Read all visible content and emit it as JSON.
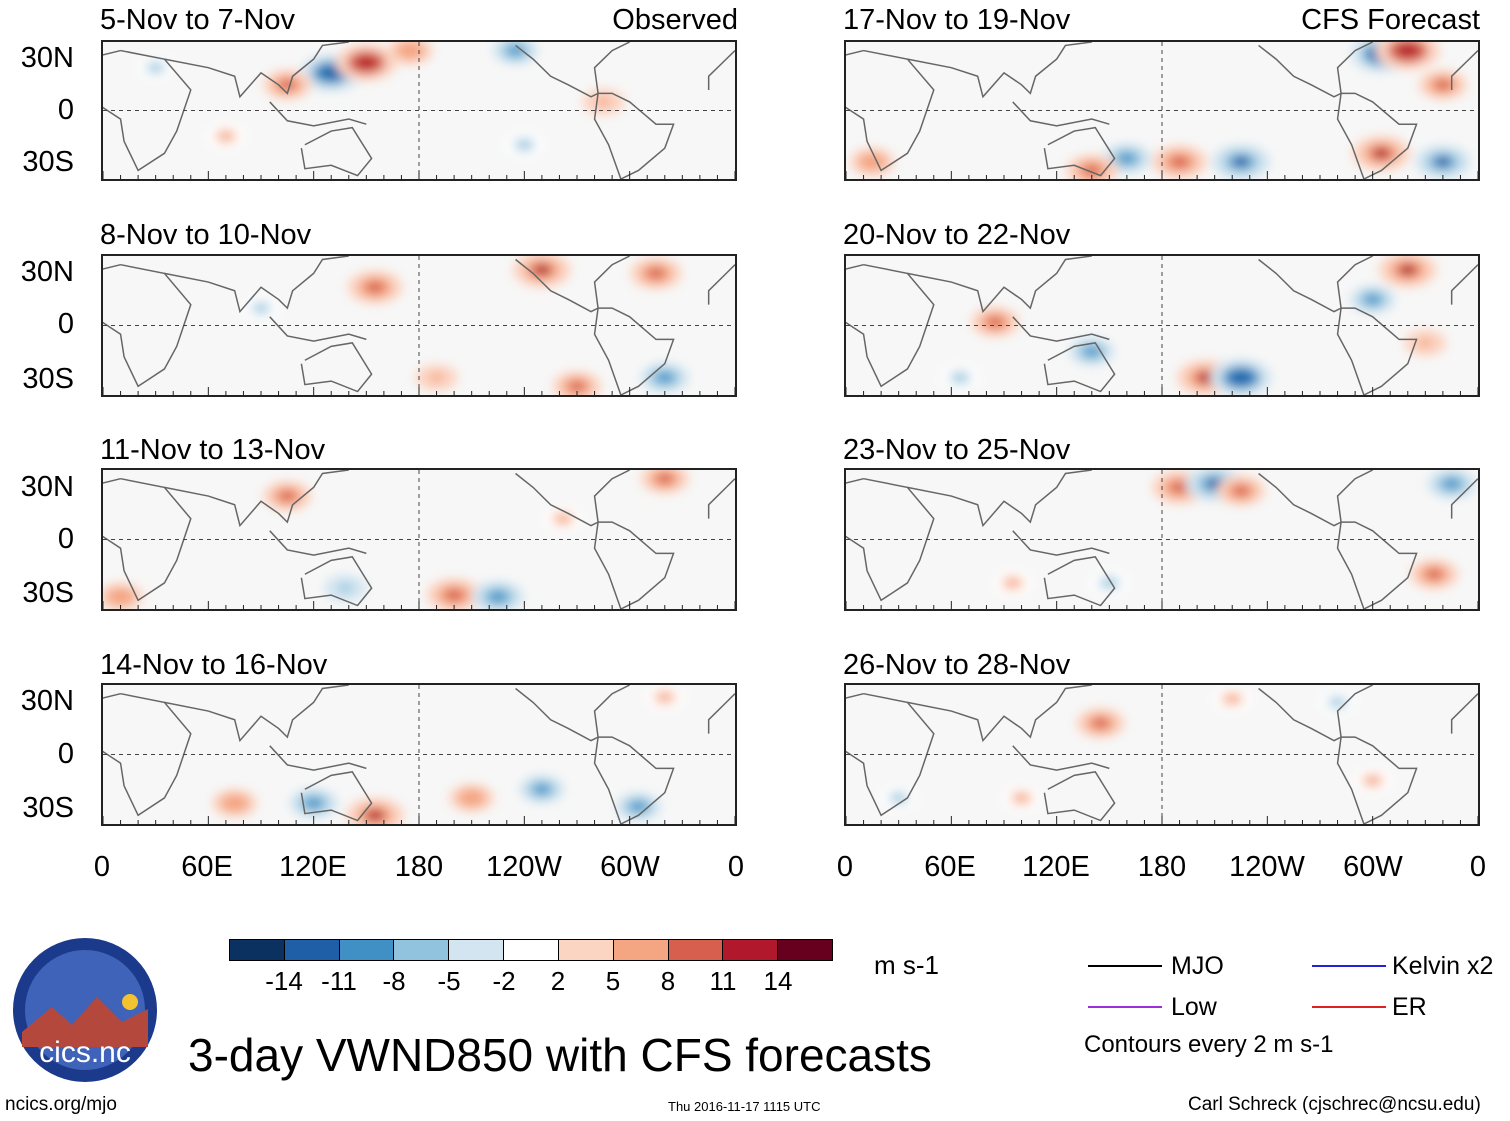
{
  "title": "3-day VWND850 with CFS forecasts",
  "columns": {
    "observed_label": "Observed",
    "forecast_label": "CFS Forecast"
  },
  "panels": [
    {
      "title": "5-Nov to 7-Nov"
    },
    {
      "title": "8-Nov to 10-Nov"
    },
    {
      "title": "11-Nov to 13-Nov"
    },
    {
      "title": "14-Nov to 16-Nov"
    },
    {
      "title": "17-Nov to 19-Nov"
    },
    {
      "title": "20-Nov to 22-Nov"
    },
    {
      "title": "23-Nov to 25-Nov"
    },
    {
      "title": "26-Nov to 28-Nov"
    }
  ],
  "chart_data": {
    "type": "heatmap",
    "variable": "VWND850",
    "units": "m s-1",
    "y_ticks": [
      "30N",
      "0",
      "30S"
    ],
    "x_ticks": [
      "0",
      "60E",
      "120E",
      "180",
      "120W",
      "60W",
      "0"
    ],
    "ylim": [
      -40,
      40
    ],
    "xlim": [
      0,
      360
    ],
    "colorbar_ticks": [
      "-14",
      "-11",
      "-8",
      "-5",
      "-2",
      "2",
      "5",
      "8",
      "11",
      "14"
    ],
    "colorbar_colors": [
      "#0a3160",
      "#1f5fa8",
      "#4090c5",
      "#91c3de",
      "#d2e5f0",
      "#ffffff",
      "#fcd4c2",
      "#f4a582",
      "#d6604d",
      "#b2182b",
      "#67001f"
    ],
    "blobs": [
      [
        {
          "lon": 130,
          "lat": 22,
          "v": -13
        },
        {
          "lon": 150,
          "lat": 28,
          "v": 13
        },
        {
          "lon": 105,
          "lat": 15,
          "v": 9
        },
        {
          "lon": 175,
          "lat": 35,
          "v": 8
        },
        {
          "lon": 235,
          "lat": 35,
          "v": -8
        },
        {
          "lon": 285,
          "lat": 5,
          "v": 7
        },
        {
          "lon": 240,
          "lat": -20,
          "v": -6
        },
        {
          "lon": 70,
          "lat": -15,
          "v": 6
        },
        {
          "lon": 30,
          "lat": 25,
          "v": -5
        }
      ],
      [
        {
          "lon": 155,
          "lat": 22,
          "v": 11
        },
        {
          "lon": 250,
          "lat": 32,
          "v": 12
        },
        {
          "lon": 315,
          "lat": 30,
          "v": 10
        },
        {
          "lon": 320,
          "lat": -30,
          "v": -9
        },
        {
          "lon": 190,
          "lat": -30,
          "v": 7
        },
        {
          "lon": 270,
          "lat": -35,
          "v": 9
        },
        {
          "lon": 90,
          "lat": 10,
          "v": -5
        }
      ],
      [
        {
          "lon": 105,
          "lat": 25,
          "v": 9
        },
        {
          "lon": 200,
          "lat": -32,
          "v": 11
        },
        {
          "lon": 225,
          "lat": -33,
          "v": -10
        },
        {
          "lon": 320,
          "lat": 35,
          "v": 9
        },
        {
          "lon": 10,
          "lat": -33,
          "v": 8
        },
        {
          "lon": 138,
          "lat": -28,
          "v": -7
        },
        {
          "lon": 262,
          "lat": 12,
          "v": 6
        }
      ],
      [
        {
          "lon": 155,
          "lat": -35,
          "v": 12
        },
        {
          "lon": 120,
          "lat": -28,
          "v": -9
        },
        {
          "lon": 210,
          "lat": -25,
          "v": 8
        },
        {
          "lon": 250,
          "lat": -20,
          "v": -8
        },
        {
          "lon": 75,
          "lat": -28,
          "v": 8
        },
        {
          "lon": 305,
          "lat": -30,
          "v": -8
        },
        {
          "lon": 320,
          "lat": 33,
          "v": 6
        }
      ],
      [
        {
          "lon": 305,
          "lat": 33,
          "v": -13
        },
        {
          "lon": 320,
          "lat": 35,
          "v": 14
        },
        {
          "lon": 190,
          "lat": -30,
          "v": 11
        },
        {
          "lon": 225,
          "lat": -30,
          "v": -12
        },
        {
          "lon": 305,
          "lat": -25,
          "v": 12
        },
        {
          "lon": 340,
          "lat": -30,
          "v": -11
        },
        {
          "lon": 160,
          "lat": -28,
          "v": -9
        },
        {
          "lon": 140,
          "lat": -35,
          "v": 10
        },
        {
          "lon": 340,
          "lat": 15,
          "v": 9
        },
        {
          "lon": 15,
          "lat": -30,
          "v": 8
        }
      ],
      [
        {
          "lon": 205,
          "lat": -30,
          "v": 12
        },
        {
          "lon": 225,
          "lat": -30,
          "v": -13
        },
        {
          "lon": 320,
          "lat": 32,
          "v": 12
        },
        {
          "lon": 85,
          "lat": 2,
          "v": 9
        },
        {
          "lon": 140,
          "lat": -15,
          "v": -8
        },
        {
          "lon": 300,
          "lat": 15,
          "v": -8
        },
        {
          "lon": 330,
          "lat": -10,
          "v": 7
        },
        {
          "lon": 65,
          "lat": -30,
          "v": -6
        }
      ],
      [
        {
          "lon": 190,
          "lat": 30,
          "v": 11
        },
        {
          "lon": 210,
          "lat": 32,
          "v": -12
        },
        {
          "lon": 225,
          "lat": 28,
          "v": 9
        },
        {
          "lon": 345,
          "lat": 32,
          "v": -9
        },
        {
          "lon": 335,
          "lat": -20,
          "v": 9
        },
        {
          "lon": 150,
          "lat": -25,
          "v": -6
        },
        {
          "lon": 95,
          "lat": -25,
          "v": 6
        }
      ],
      [
        {
          "lon": 145,
          "lat": 18,
          "v": 9
        },
        {
          "lon": 100,
          "lat": -25,
          "v": 6
        },
        {
          "lon": 300,
          "lat": -15,
          "v": 6
        },
        {
          "lon": 30,
          "lat": -25,
          "v": -5
        },
        {
          "lon": 220,
          "lat": 32,
          "v": 6
        },
        {
          "lon": 280,
          "lat": 30,
          "v": -5
        }
      ]
    ]
  }
}
